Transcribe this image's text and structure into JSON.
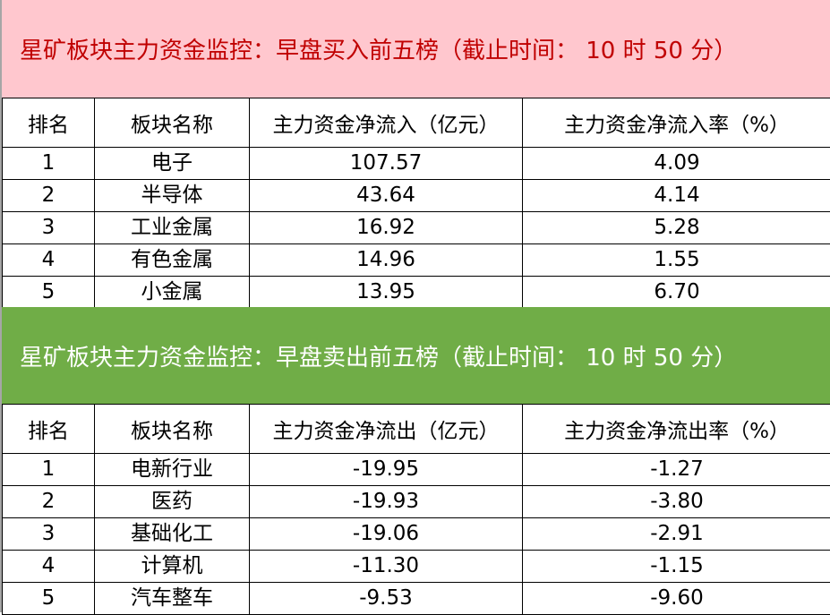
{
  "buy": {
    "title": "星矿板块主力资金监控：早盘买入前五榜（截止时间： 10 时 50 分）",
    "headers": [
      "排名",
      "板块名称",
      "主力资金净流入（亿元）",
      "主力资金净流入率（%）"
    ],
    "rows": [
      [
        "1",
        "电子",
        "107.57",
        "4.09"
      ],
      [
        "2",
        "半导体",
        "43.64",
        "4.14"
      ],
      [
        "3",
        "工业金属",
        "16.92",
        "5.28"
      ],
      [
        "4",
        "有色金属",
        "14.96",
        "1.55"
      ],
      [
        "5",
        "小金属",
        "13.95",
        "6.70"
      ]
    ]
  },
  "sell": {
    "title": "星矿板块主力资金监控：早盘卖出前五榜（截止时间： 10 时 50 分）",
    "headers": [
      "排名",
      "板块名称",
      "主力资金净流出（亿元）",
      "主力资金净流出率（%）"
    ],
    "rows": [
      [
        "1",
        "电新行业",
        "-19.95",
        "-1.27"
      ],
      [
        "2",
        "医药",
        "-19.93",
        "-3.80"
      ],
      [
        "3",
        "基础化工",
        "-19.06",
        "-2.91"
      ],
      [
        "4",
        "计算机",
        "-11.30",
        "-1.15"
      ],
      [
        "5",
        "汽车整车",
        "-9.53",
        "-9.60"
      ]
    ]
  },
  "colors": {
    "buy_band": "#ffc7ce",
    "buy_text": "#c00000",
    "sell_band": "#70ad47",
    "sell_text": "#ffffff"
  }
}
